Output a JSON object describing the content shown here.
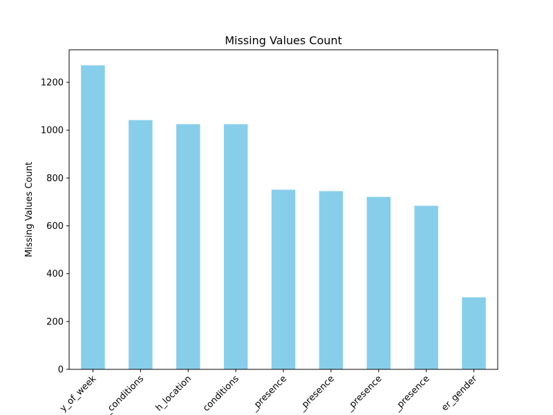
{
  "chart_data": {
    "type": "bar",
    "title": "Missing Values Count",
    "xlabel": "",
    "ylabel": "Missing Values Count",
    "categories": [
      "y_of_week",
      "_conditions",
      "h_location",
      "conditions",
      "_presence",
      "_presence",
      "_presence",
      "_presence",
      "er_gender"
    ],
    "values": [
      1271,
      1042,
      1025,
      1025,
      751,
      745,
      721,
      684,
      301
    ],
    "ylim": [
      0,
      1336
    ],
    "yticks": [
      0,
      200,
      400,
      600,
      800,
      1000,
      1200
    ],
    "bar_color": "#87ceeb",
    "grid": false,
    "legend": "none"
  }
}
